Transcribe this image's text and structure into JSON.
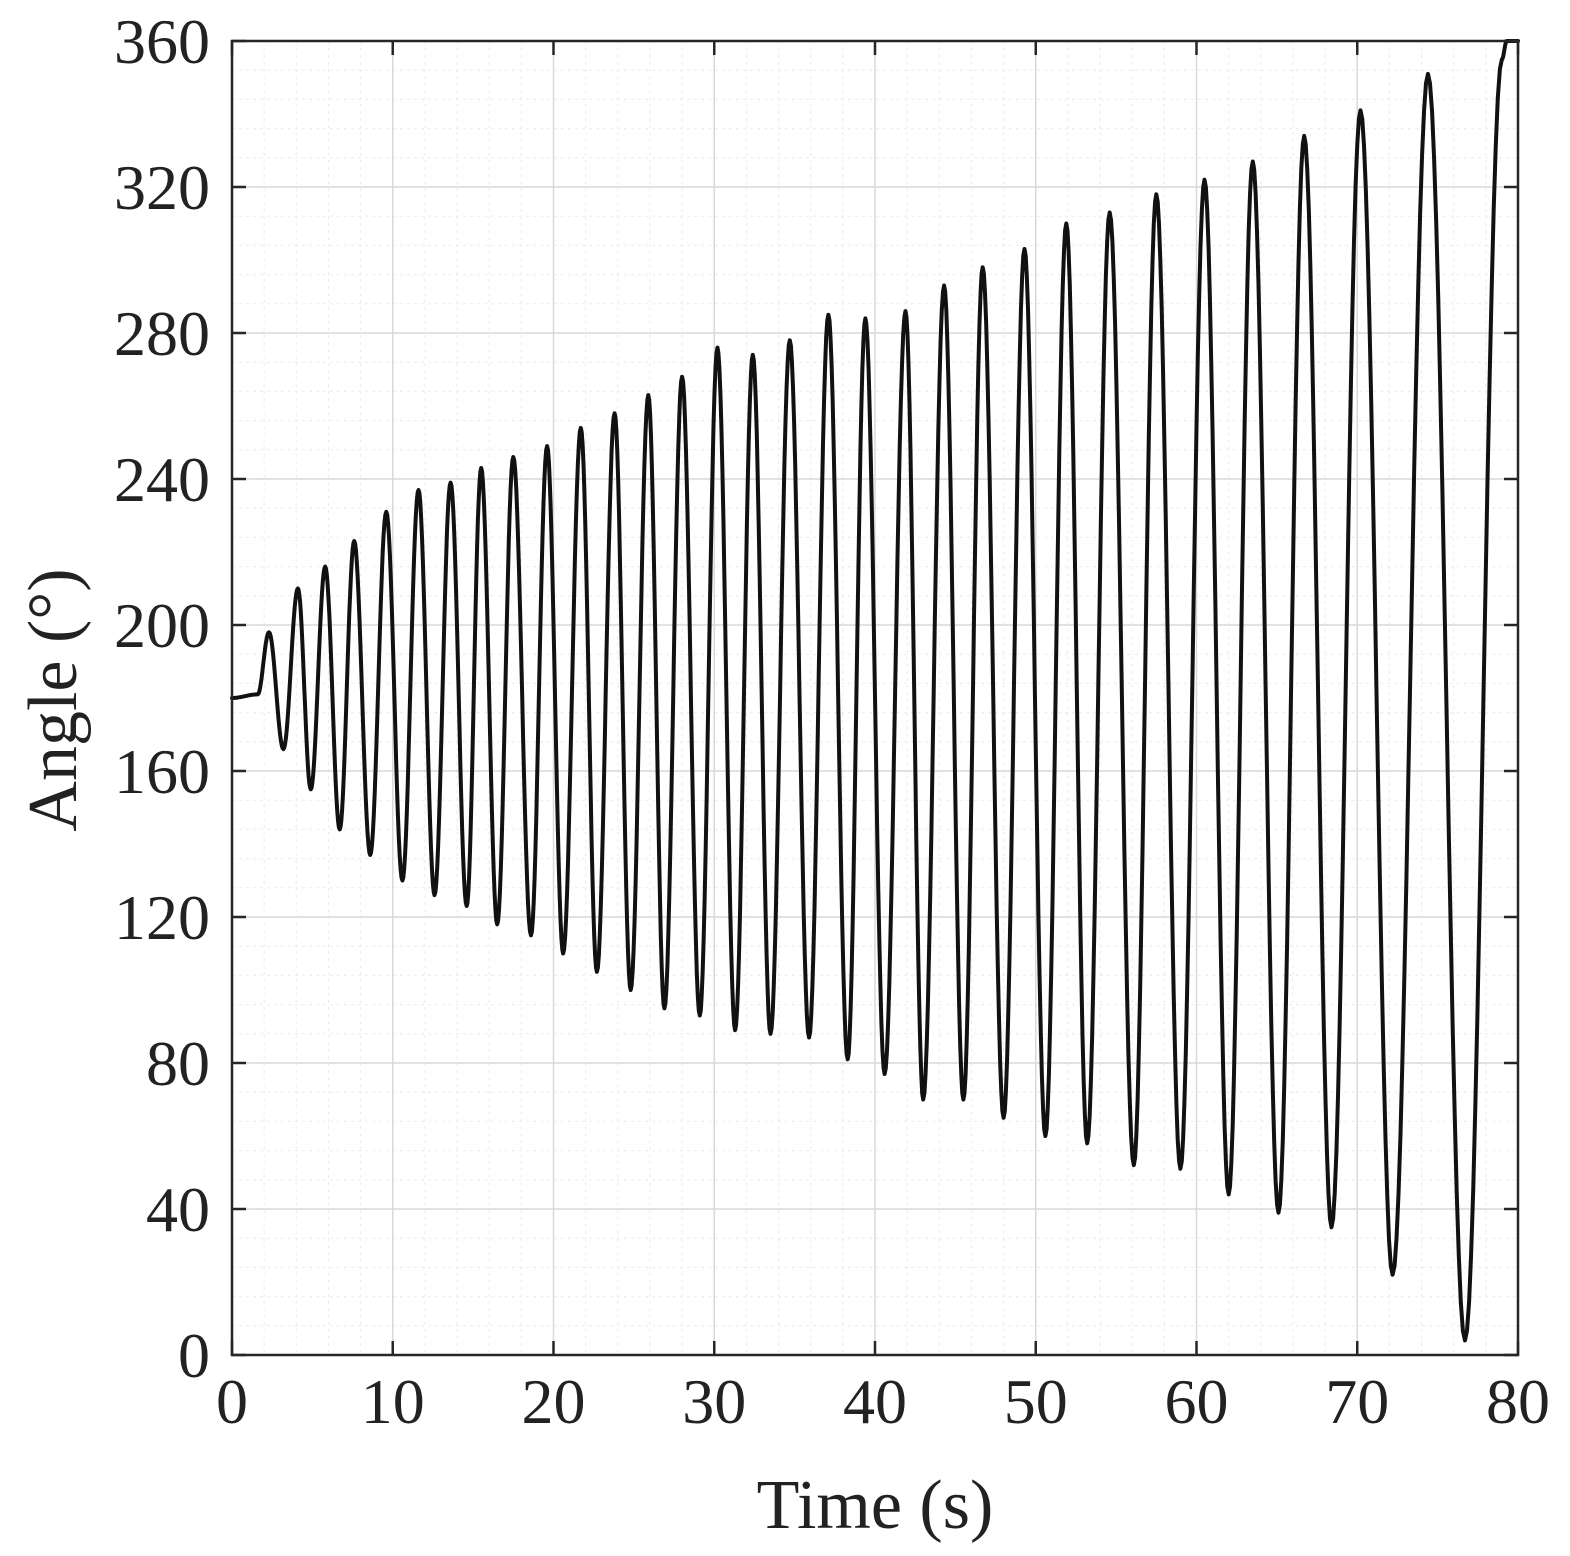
{
  "chart_data": {
    "type": "line",
    "title": "",
    "xlabel": "Time (s)",
    "ylabel": "Angle (°)",
    "xlim": [
      0,
      80
    ],
    "ylim": [
      0,
      360
    ],
    "xticks": [
      0,
      10,
      20,
      30,
      40,
      50,
      60,
      70,
      80
    ],
    "yticks": [
      0,
      40,
      80,
      120,
      160,
      200,
      240,
      280,
      320,
      360
    ],
    "grid": true,
    "minor_grid": true,
    "series_color": "#111111",
    "series": [
      {
        "x": [
          0,
          1.6,
          2.3,
          3.2,
          4.1,
          4.9,
          5.8,
          6.7,
          7.6,
          8.6,
          9.6,
          10.6,
          11.6,
          12.6,
          13.6,
          14.6,
          15.5,
          16.5,
          17.5,
          18.6,
          19.6,
          20.6,
          21.7,
          22.7,
          23.8,
          24.8,
          25.9,
          26.9,
          28.0,
          29.1,
          30.2,
          31.3,
          32.4,
          33.5,
          34.7,
          35.9,
          37.1,
          38.3,
          39.4,
          40.6,
          41.9,
          43.0,
          44.3,
          45.5,
          46.7,
          48.0,
          49.3,
          50.6,
          51.9,
          53.2,
          54.6,
          56.1,
          57.5,
          59.0,
          60.5,
          62.0,
          63.5,
          65.1,
          66.7,
          68.4,
          70.2,
          72.2,
          74.4,
          76.7,
          79.0,
          79.3,
          80.0
        ],
        "y": [
          180,
          181,
          198,
          166,
          210,
          155,
          216,
          144,
          223,
          137,
          231,
          130,
          237,
          126,
          239,
          123,
          243,
          118,
          246,
          115,
          249,
          110,
          254,
          105,
          258,
          100,
          263,
          95,
          268,
          93,
          276,
          89,
          274,
          88,
          278,
          87,
          285,
          81,
          284,
          77,
          286,
          70,
          293,
          70,
          298,
          65,
          303,
          60,
          310,
          58,
          313,
          52,
          318,
          51,
          322,
          44,
          327,
          39,
          334,
          35,
          341,
          22,
          351,
          4,
          355,
          360,
          360
        ]
      }
    ]
  }
}
